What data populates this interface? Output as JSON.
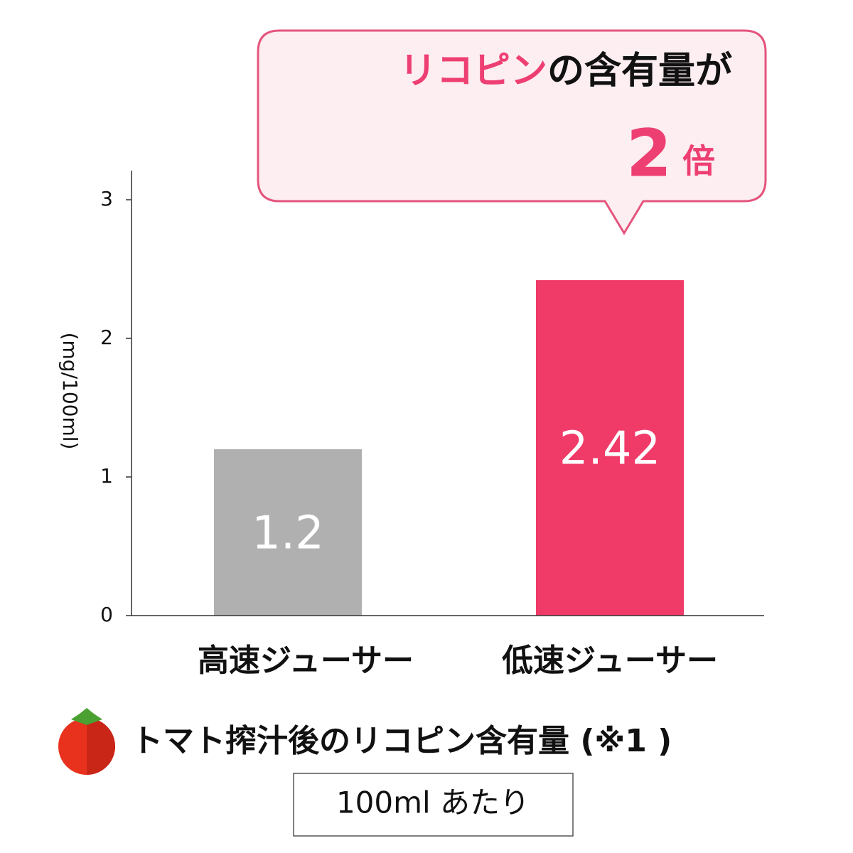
{
  "chart_data": {
    "type": "bar",
    "y_label": "(mg/100ml)",
    "categories": [
      "高速ジューサー",
      "低速ジューサー"
    ],
    "values": [
      1.2,
      2.42
    ],
    "colors": [
      "#b0b0b0",
      "#f03a68"
    ],
    "ylim": [
      0,
      3.2
    ],
    "yticks": [
      0,
      1,
      2,
      3
    ],
    "annotation": {
      "highlight": "リコピン",
      "text": "の含有量が",
      "ratio": 2,
      "ratio_unit": "倍"
    },
    "title": "トマト搾汁後のリコピン含有量 (※1 )",
    "subtitle": "100ml あたり"
  }
}
